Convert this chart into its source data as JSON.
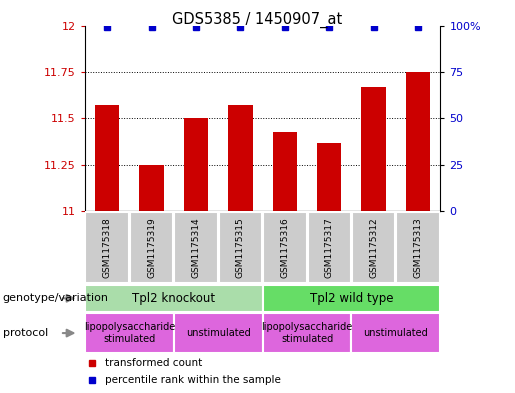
{
  "title": "GDS5385 / 1450907_at",
  "samples": [
    "GSM1175318",
    "GSM1175319",
    "GSM1175314",
    "GSM1175315",
    "GSM1175316",
    "GSM1175317",
    "GSM1175312",
    "GSM1175313"
  ],
  "transformed_counts": [
    11.57,
    11.25,
    11.5,
    11.57,
    11.43,
    11.37,
    11.67,
    11.75
  ],
  "percentile_val": 99,
  "ylim_left": [
    11.0,
    12.0
  ],
  "ylim_right": [
    0,
    100
  ],
  "yticks_left": [
    11.0,
    11.25,
    11.5,
    11.75,
    12.0
  ],
  "ytick_labels_left": [
    "11",
    "11.25",
    "11.5",
    "11.75",
    "12"
  ],
  "yticks_right": [
    0,
    25,
    50,
    75,
    100
  ],
  "ytick_labels_right": [
    "0",
    "25",
    "50",
    "75",
    "100%"
  ],
  "bar_color": "#cc0000",
  "dot_color": "#0000cc",
  "bar_width": 0.55,
  "genotype_groups": [
    {
      "label": "Tpl2 knockout",
      "start": 0,
      "end": 4,
      "color": "#aaddaa"
    },
    {
      "label": "Tpl2 wild type",
      "start": 4,
      "end": 8,
      "color": "#66dd66"
    }
  ],
  "protocol_groups": [
    {
      "label": "lipopolysaccharide\nstimulated",
      "start": 0,
      "end": 2,
      "color": "#dd66dd"
    },
    {
      "label": "unstimulated",
      "start": 2,
      "end": 4,
      "color": "#dd66dd"
    },
    {
      "label": "lipopolysaccharide\nstimulated",
      "start": 4,
      "end": 6,
      "color": "#dd66dd"
    },
    {
      "label": "unstimulated",
      "start": 6,
      "end": 8,
      "color": "#dd66dd"
    }
  ],
  "sample_bg_color": "#cccccc",
  "legend_labels": [
    "transformed count",
    "percentile rank within the sample"
  ],
  "legend_colors": [
    "#cc0000",
    "#0000cc"
  ],
  "left_tick_color": "#cc0000",
  "right_tick_color": "#0000cc",
  "annotation_genotype": "genotype/variation",
  "annotation_protocol": "protocol",
  "arrow_color": "#888888",
  "background_color": "#ffffff"
}
